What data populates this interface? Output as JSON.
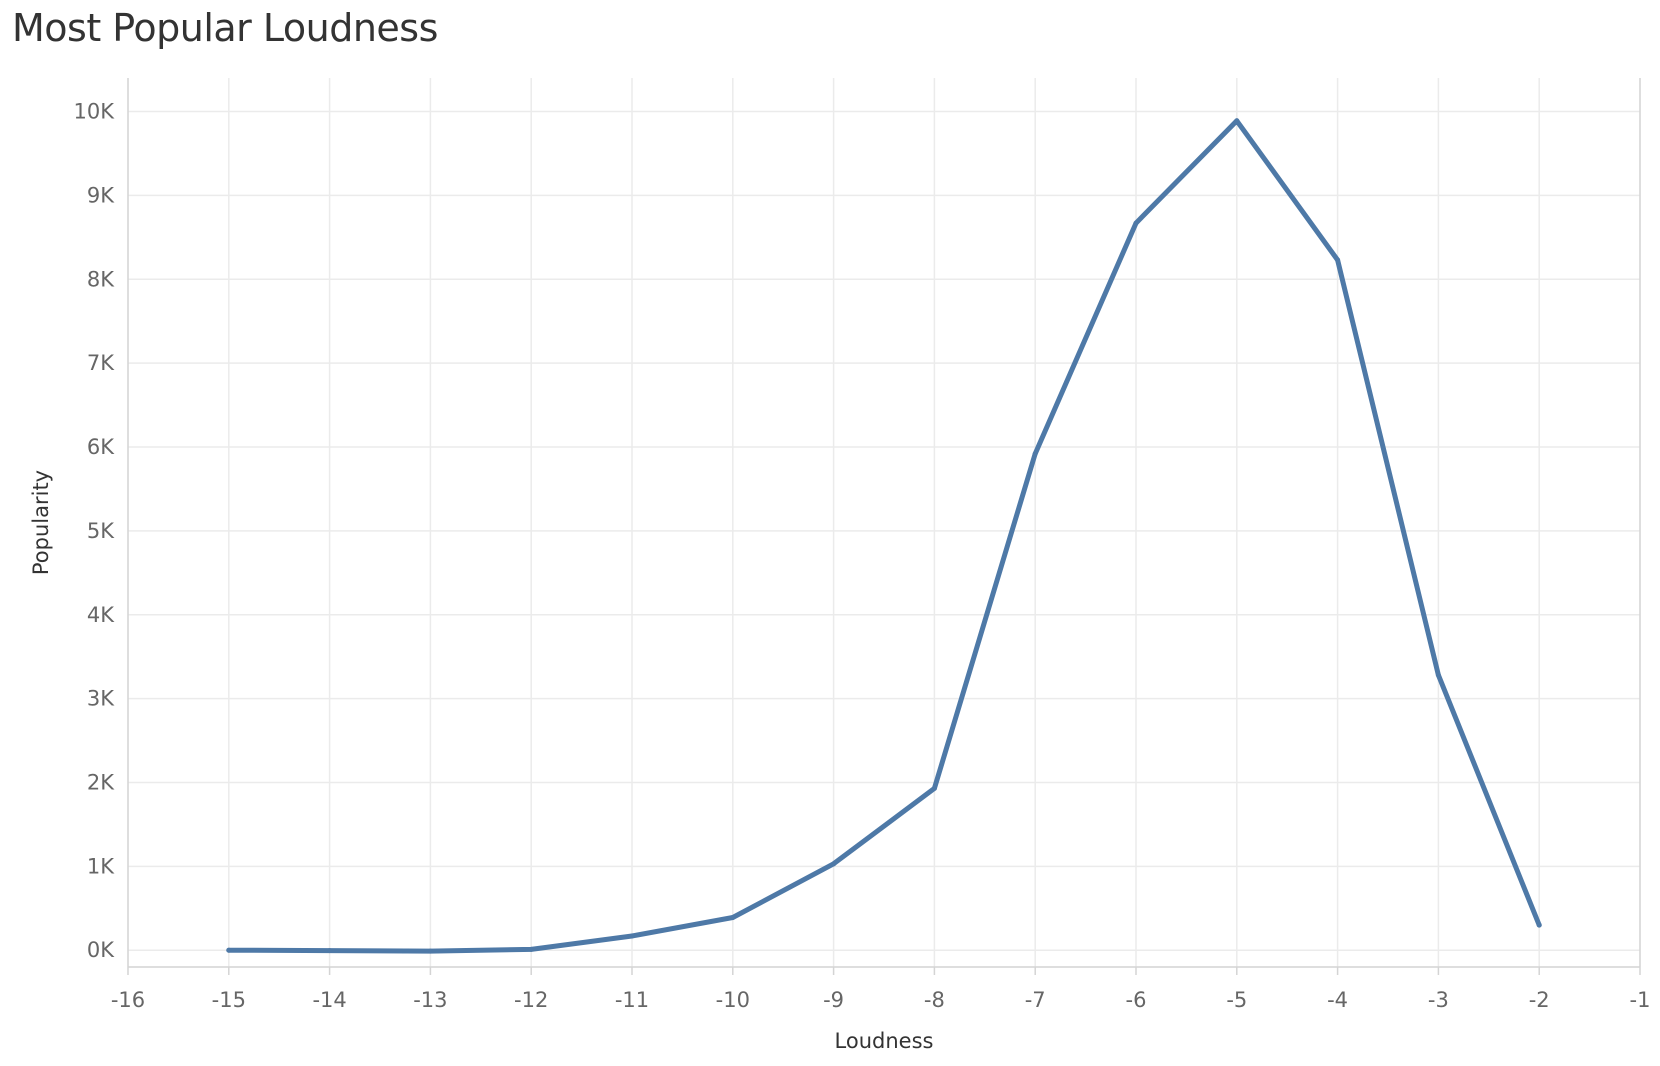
{
  "chart_data": {
    "type": "line",
    "title": "Most Popular Loudness",
    "xlabel": "Loudness",
    "ylabel": "Popularity",
    "xlim": [
      -16,
      -1
    ],
    "ylim": [
      -200,
      10400
    ],
    "x_ticks": [
      -16,
      -15,
      -14,
      -13,
      -12,
      -11,
      -10,
      -9,
      -8,
      -7,
      -6,
      -5,
      -4,
      -3,
      -2,
      -1
    ],
    "x_tick_labels": [
      "-16",
      "-15",
      "-14",
      "-13",
      "-12",
      "-11",
      "-10",
      "-9",
      "-8",
      "-7",
      "-6",
      "-5",
      "-4",
      "-3",
      "-2",
      "-1"
    ],
    "y_ticks": [
      0,
      1000,
      2000,
      3000,
      4000,
      5000,
      6000,
      7000,
      8000,
      9000,
      10000
    ],
    "y_tick_labels": [
      "0K",
      "1K",
      "2K",
      "3K",
      "4K",
      "5K",
      "6K",
      "7K",
      "8K",
      "9K",
      "10K"
    ],
    "grid": true,
    "colors": {
      "line": "#4e79a7",
      "grid": "#ebebeb",
      "axis": "#d4d4d4"
    },
    "series": [
      {
        "x": [
          -15,
          -14,
          -13,
          -12,
          -11,
          -10,
          -9,
          -8,
          -7,
          -6,
          -5,
          -4,
          -3,
          -2
        ],
        "values": [
          0,
          -5,
          -10,
          10,
          170,
          390,
          1030,
          1930,
          5920,
          8670,
          9890,
          8230,
          3280,
          300
        ]
      }
    ]
  }
}
